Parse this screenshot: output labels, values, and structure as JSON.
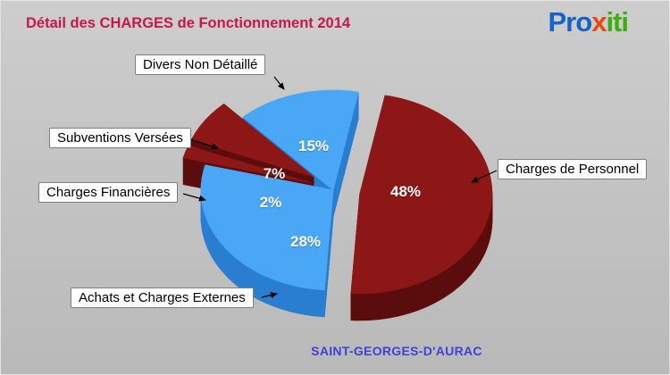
{
  "header": {
    "title": "Détail des CHARGES de Fonctionnement 2014"
  },
  "logo": {
    "segments": [
      {
        "text": "Pro",
        "color": "#1563c6"
      },
      {
        "text": "x",
        "color": "#e8490f"
      },
      {
        "text": "iti",
        "color": "#3cae0e"
      }
    ]
  },
  "footer": {
    "location": "SAINT-GEORGES-D'AURAC"
  },
  "chart_data": {
    "type": "pie",
    "style": "3d-exploded",
    "title": "Détail des CHARGES de Fonctionnement 2014",
    "unit": "%",
    "slices": [
      {
        "label": "Divers Non Détaillé",
        "value": 15,
        "pct_label": "15%",
        "color_family": "blue",
        "exploded": false
      },
      {
        "label": "Charges de Personnel",
        "value": 48,
        "pct_label": "48%",
        "color_family": "red",
        "exploded": true
      },
      {
        "label": "Achats et Charges Externes",
        "value": 28,
        "pct_label": "28%",
        "color_family": "blue",
        "exploded": false
      },
      {
        "label": "Charges Financières",
        "value": 2,
        "pct_label": "2%",
        "color_family": "red",
        "exploded": true
      },
      {
        "label": "Subventions Versées",
        "value": 7,
        "pct_label": "7%",
        "color_family": "red",
        "exploded": true
      }
    ],
    "palette": {
      "blue_top": "#4aa7f5",
      "blue_side": "#2b7ed0",
      "red_top": "#8d1717",
      "red_side": "#5c0d0d"
    }
  }
}
